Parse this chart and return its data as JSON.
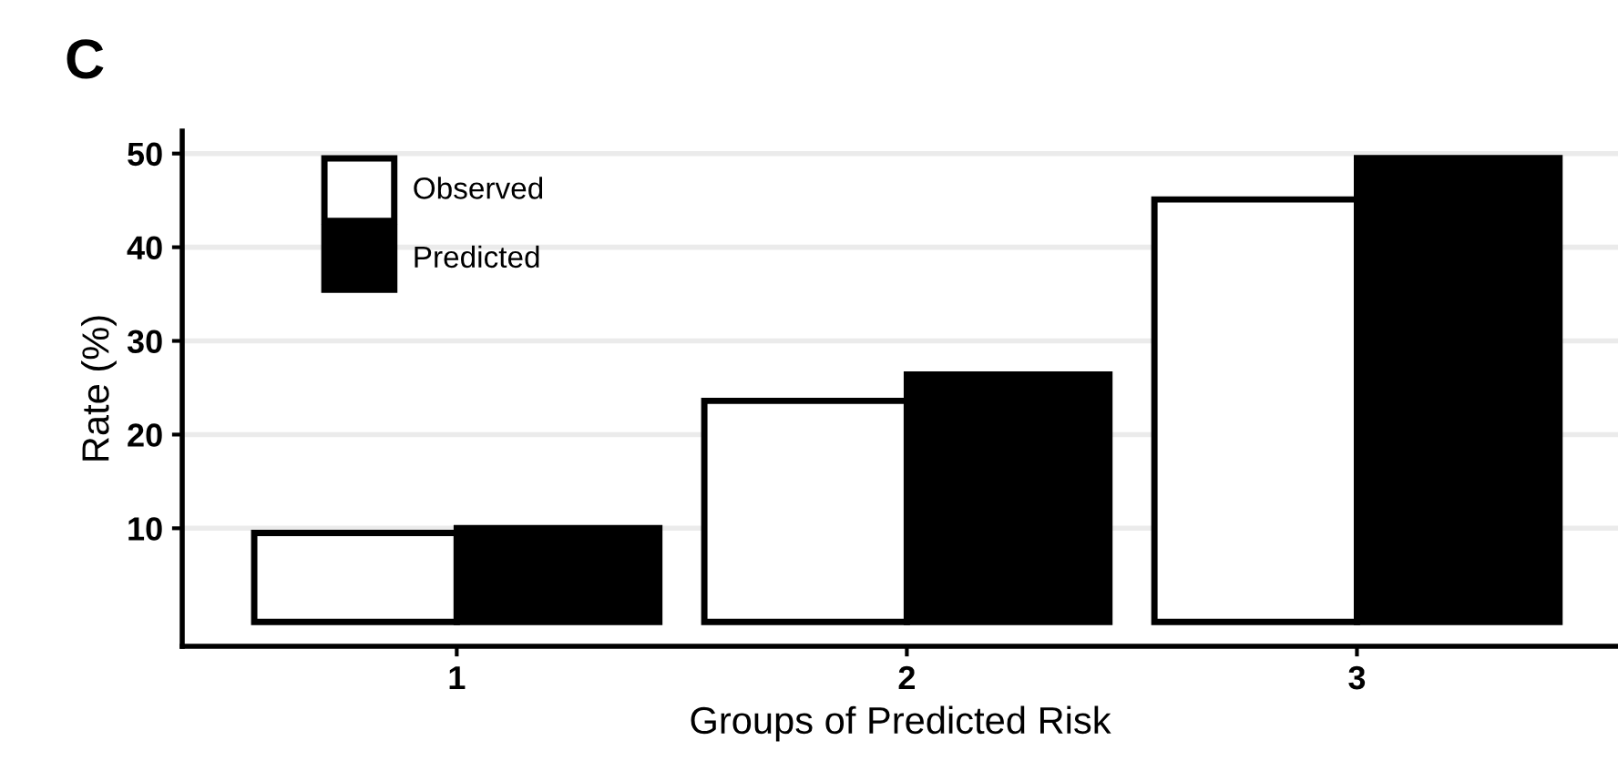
{
  "chart_data": {
    "type": "bar",
    "title": "C",
    "xlabel": "Groups of Predicted Risk",
    "ylabel": "Rate (%)",
    "categories": [
      "1",
      "2",
      "3"
    ],
    "series": [
      {
        "name": "Observed",
        "color": "#ffffff",
        "values": [
          9.5,
          23.6,
          45.1
        ]
      },
      {
        "name": "Predicted",
        "color": "#000000",
        "values": [
          10.0,
          26.4,
          49.5
        ]
      }
    ],
    "ylim": [
      -2.6,
      52.4
    ],
    "yticks": [
      10,
      20,
      30,
      40,
      50
    ],
    "grid": "y",
    "legend": "top left"
  }
}
